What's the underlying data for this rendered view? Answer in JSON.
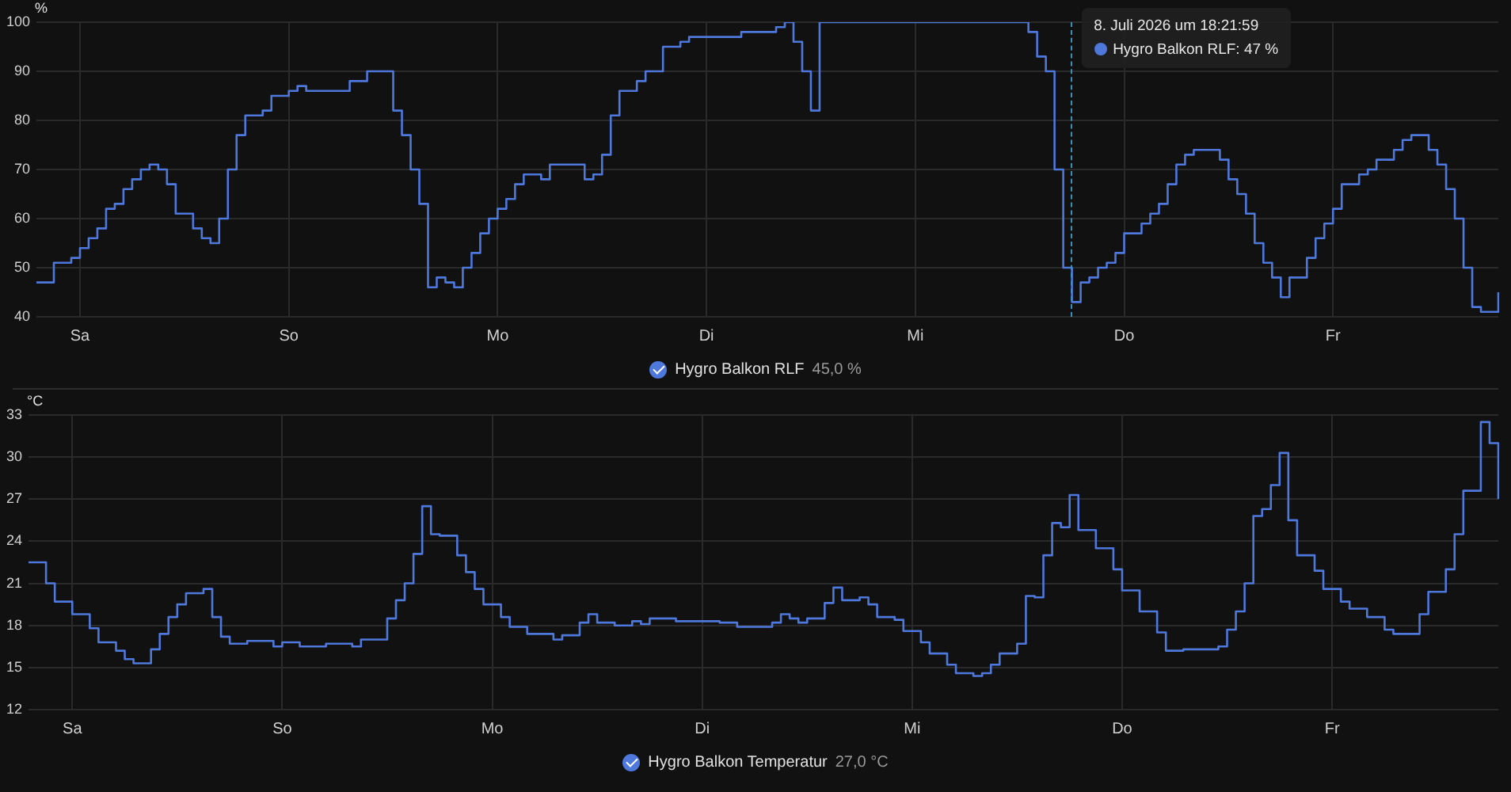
{
  "chart_data": [
    {
      "type": "step",
      "ylabel": "%",
      "ylim": [
        40,
        100
      ],
      "yticks": [
        40,
        50,
        60,
        70,
        80,
        90,
        100
      ],
      "categories": [
        null,
        null,
        null,
        null,
        null,
        "Sa",
        null,
        null,
        null,
        null,
        null,
        null,
        null,
        null,
        null,
        null,
        null,
        null,
        null,
        null,
        null,
        null,
        null,
        null,
        null,
        null,
        null,
        null,
        null,
        "So",
        null,
        null,
        null,
        null,
        null,
        null,
        null,
        null,
        null,
        null,
        null,
        null,
        null,
        null,
        null,
        null,
        null,
        null,
        null,
        null,
        null,
        null,
        null,
        "Mo",
        null,
        null,
        null,
        null,
        null,
        null,
        null,
        null,
        null,
        null,
        null,
        null,
        null,
        null,
        null,
        null,
        null,
        null,
        null,
        null,
        null,
        null,
        null,
        "Di",
        null,
        null,
        null,
        null,
        null,
        null,
        null,
        null,
        null,
        null,
        null,
        null,
        null,
        null,
        null,
        null,
        null,
        null,
        null,
        null,
        null,
        null,
        null,
        "Mi",
        null,
        null,
        null,
        null,
        null,
        null,
        null,
        null,
        null,
        null,
        null,
        null,
        null,
        null,
        null,
        null,
        null,
        null,
        null,
        null,
        null,
        null,
        null,
        "Do",
        null,
        null,
        null,
        null,
        null,
        null,
        null,
        null,
        null,
        null,
        null,
        null,
        null,
        null,
        null,
        null,
        null,
        null,
        null,
        null,
        null,
        null,
        null,
        "Fr",
        null,
        null,
        null,
        null,
        null,
        null,
        null,
        null,
        null,
        null,
        null,
        null,
        null,
        null,
        null,
        null,
        null,
        null,
        null
      ],
      "grid": true,
      "legend": "bottom",
      "marker": "none",
      "line_style": "solid",
      "series": [
        {
          "name": "Hygro Balkon RLF",
          "color": "#4f78dc",
          "values": [
            47,
            47,
            51,
            51,
            52,
            54,
            56,
            58,
            62,
            63,
            66,
            68,
            70,
            71,
            70,
            67,
            61,
            61,
            58,
            56,
            55,
            60,
            70,
            77,
            81,
            81,
            82,
            85,
            85,
            86,
            87,
            86,
            86,
            86,
            86,
            86,
            88,
            88,
            90,
            90,
            90,
            82,
            77,
            70,
            63,
            46,
            48,
            47,
            46,
            50,
            53,
            57,
            60,
            62,
            64,
            67,
            69,
            69,
            68,
            71,
            71,
            71,
            71,
            68,
            69,
            73,
            81,
            86,
            86,
            88,
            90,
            90,
            95,
            95,
            96,
            97,
            97,
            97,
            97,
            97,
            97,
            98,
            98,
            98,
            98,
            99,
            100,
            96,
            90,
            82,
            100,
            100,
            100,
            100,
            100,
            100,
            100,
            100,
            100,
            100,
            100,
            100,
            100,
            100,
            100,
            100,
            100,
            100,
            100,
            100,
            100,
            100,
            100,
            100,
            98,
            93,
            90,
            70,
            50,
            43,
            47,
            48,
            50,
            51,
            53,
            57,
            57,
            59,
            61,
            63,
            67,
            71,
            73,
            74,
            74,
            74,
            72,
            68,
            65,
            61,
            55,
            51,
            48,
            44,
            48,
            48,
            52,
            56,
            59,
            62,
            67,
            67,
            69,
            70,
            72,
            72,
            74,
            76,
            77,
            77,
            74,
            71,
            66,
            60,
            50,
            42,
            41,
            41,
            45
          ]
        }
      ],
      "annotations": [
        "45,0 %",
        "8. Juli 2026 um 18:21:59",
        "Hygro Balkon RLF: 47 %"
      ]
    },
    {
      "type": "step",
      "ylabel": "°C",
      "ylim": [
        12,
        33
      ],
      "yticks": [
        12,
        15,
        18,
        21,
        24,
        27,
        30,
        33
      ],
      "categories": [
        null,
        null,
        null,
        null,
        null,
        "Sa",
        null,
        null,
        null,
        null,
        null,
        null,
        null,
        null,
        null,
        null,
        null,
        null,
        null,
        null,
        null,
        null,
        null,
        null,
        null,
        null,
        null,
        null,
        null,
        "So",
        null,
        null,
        null,
        null,
        null,
        null,
        null,
        null,
        null,
        null,
        null,
        null,
        null,
        null,
        null,
        null,
        null,
        null,
        null,
        null,
        null,
        null,
        null,
        "Mo",
        null,
        null,
        null,
        null,
        null,
        null,
        null,
        null,
        null,
        null,
        null,
        null,
        null,
        null,
        null,
        null,
        null,
        null,
        null,
        null,
        null,
        null,
        null,
        "Di",
        null,
        null,
        null,
        null,
        null,
        null,
        null,
        null,
        null,
        null,
        null,
        null,
        null,
        null,
        null,
        null,
        null,
        null,
        null,
        null,
        null,
        null,
        null,
        "Mi",
        null,
        null,
        null,
        null,
        null,
        null,
        null,
        null,
        null,
        null,
        null,
        null,
        null,
        null,
        null,
        null,
        null,
        null,
        null,
        null,
        null,
        null,
        null,
        "Do",
        null,
        null,
        null,
        null,
        null,
        null,
        null,
        null,
        null,
        null,
        null,
        null,
        null,
        null,
        null,
        null,
        null,
        null,
        null,
        null,
        null,
        null,
        null,
        "Fr",
        null,
        null,
        null,
        null,
        null,
        null,
        null,
        null,
        null,
        null,
        null,
        null,
        null,
        null,
        null,
        null,
        null,
        null,
        null
      ],
      "grid": true,
      "legend": "bottom",
      "marker": "none",
      "line_style": "solid",
      "series": [
        {
          "name": "Hygro Balkon Temperatur",
          "color": "#4f78dc",
          "values": [
            22.5,
            22.5,
            21,
            19.7,
            19.7,
            18.8,
            18.8,
            17.8,
            16.8,
            16.8,
            16.2,
            15.6,
            15.3,
            15.3,
            16.3,
            17.4,
            18.6,
            19.5,
            20.3,
            20.3,
            20.6,
            18.6,
            17.2,
            16.7,
            16.7,
            16.9,
            16.9,
            16.9,
            16.5,
            16.8,
            16.8,
            16.5,
            16.5,
            16.5,
            16.7,
            16.7,
            16.7,
            16.5,
            17,
            17,
            17,
            18.5,
            19.8,
            21,
            23.1,
            26.5,
            24.5,
            24.4,
            24.4,
            23,
            21.8,
            20.6,
            19.5,
            19.5,
            18.6,
            17.9,
            17.9,
            17.4,
            17.4,
            17.4,
            17,
            17.3,
            17.3,
            18.2,
            18.8,
            18.2,
            18.2,
            18,
            18,
            18.3,
            18.1,
            18.5,
            18.5,
            18.5,
            18.3,
            18.3,
            18.3,
            18.3,
            18.3,
            18.2,
            18.2,
            17.9,
            17.9,
            17.9,
            17.9,
            18.2,
            18.8,
            18.5,
            18.2,
            18.5,
            18.5,
            19.6,
            20.7,
            19.8,
            19.8,
            20,
            19.5,
            18.6,
            18.6,
            18.4,
            17.6,
            17.6,
            16.8,
            16,
            16,
            15.2,
            14.6,
            14.6,
            14.4,
            14.6,
            15.2,
            16,
            16,
            16.7,
            20.1,
            20,
            23,
            25.3,
            25,
            27.3,
            24.8,
            24.8,
            23.5,
            23.5,
            22,
            20.5,
            20.5,
            19,
            19,
            17.5,
            16.2,
            16.2,
            16.3,
            16.3,
            16.3,
            16.3,
            16.5,
            17.7,
            19,
            21,
            25.8,
            26.3,
            28,
            30.3,
            25.5,
            23,
            23,
            21.9,
            20.6,
            20.6,
            19.7,
            19.2,
            19.2,
            18.6,
            18.6,
            17.7,
            17.4,
            17.4,
            17.4,
            18.8,
            20.4,
            20.4,
            22,
            24.5,
            27.6,
            27.6,
            32.5,
            31,
            27
          ]
        }
      ],
      "annotations": [
        "27,0 °C"
      ]
    }
  ]
}
